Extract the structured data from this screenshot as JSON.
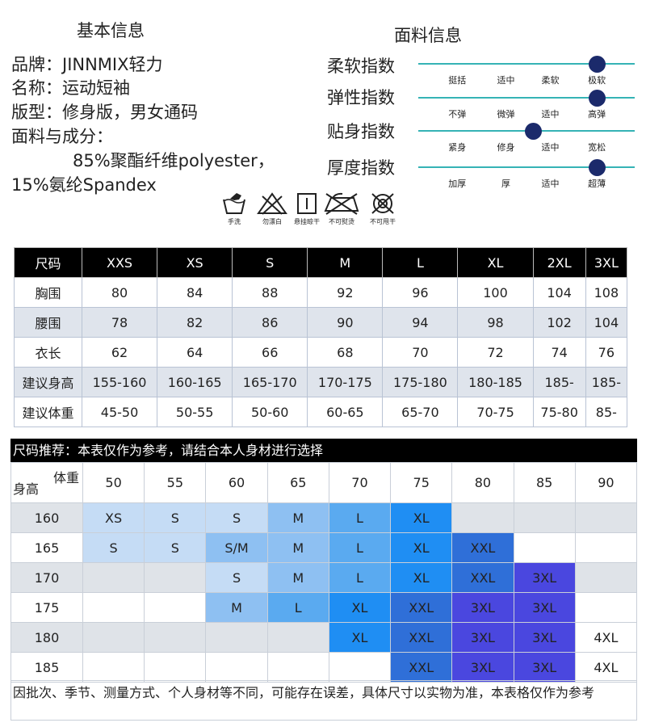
{
  "basic": {
    "heading": "基本信息",
    "brand": "品牌：JINNMIX轻力",
    "name": "名称：运动短袖",
    "fit": "版型：修身版，男女通码",
    "fabric": "面料与成分：",
    "composition_1": "85%聚酯纤维polyester，",
    "composition_2": "15%氨纶Spandex"
  },
  "fabric": {
    "heading": "面料信息",
    "indices": [
      {
        "label": "柔软指数",
        "ticks": [
          "挺括",
          "适中",
          "柔软",
          "极软"
        ],
        "level": 4
      },
      {
        "label": "弹性指数",
        "ticks": [
          "不弹",
          "微弹",
          "适中",
          "高弹"
        ],
        "level": 4
      },
      {
        "label": "贴身指数",
        "ticks": [
          "紧身",
          "修身",
          "适中",
          "宽松"
        ],
        "level": 2.6
      },
      {
        "label": "厚度指数",
        "ticks": [
          "加厚",
          "厚",
          "适中",
          "超薄"
        ],
        "level": 4
      }
    ]
  },
  "care": {
    "hand_wash": "手洗",
    "no_bleach": "勿漂白",
    "hang_dry": "悬挂晾干",
    "no_iron": "不可熨烫",
    "no_tumble": "不可甩干"
  },
  "size_table": {
    "header": [
      "尺码",
      "XXS",
      "XS",
      "S",
      "M",
      "L",
      "XL",
      "2XL",
      "3XL"
    ],
    "rows": [
      [
        "胸围",
        "80",
        "84",
        "88",
        "92",
        "96",
        "100",
        "104",
        "108"
      ],
      [
        "腰围",
        "78",
        "82",
        "86",
        "90",
        "94",
        "98",
        "102",
        "104"
      ],
      [
        "衣长",
        "62",
        "64",
        "66",
        "68",
        "70",
        "72",
        "74",
        "76"
      ],
      [
        "建议身高",
        "155-160",
        "160-165",
        "165-170",
        "170-175",
        "175-180",
        "180-185",
        "185-",
        "185-"
      ],
      [
        "建议体重",
        "45-50",
        "50-55",
        "50-60",
        "60-65",
        "65-70",
        "70-75",
        "75-80",
        "85-"
      ]
    ]
  },
  "recommend": {
    "title": "尺码推荐：本表仅作为参考，请结合本人身材进行选择",
    "weight_label": "体重",
    "height_label": "身高",
    "weights": [
      "50",
      "55",
      "60",
      "65",
      "70",
      "75",
      "80",
      "85",
      "90"
    ],
    "rows": [
      {
        "height": "160",
        "cells": [
          "XS",
          "S",
          "S",
          "M",
          "L",
          "XL",
          "",
          "",
          ""
        ]
      },
      {
        "height": "165",
        "cells": [
          "S",
          "S",
          "S/M",
          "M",
          "L",
          "XL",
          "XXL",
          "",
          ""
        ]
      },
      {
        "height": "170",
        "cells": [
          "",
          "",
          "S",
          "M",
          "L",
          "XL",
          "XXL",
          "3XL",
          ""
        ]
      },
      {
        "height": "175",
        "cells": [
          "",
          "",
          "M",
          "L",
          "XL",
          "XXL",
          "3XL",
          "3XL",
          ""
        ]
      },
      {
        "height": "180",
        "cells": [
          "",
          "",
          "",
          "",
          "XL",
          "XXL",
          "3XL",
          "3XL",
          "4XL"
        ]
      },
      {
        "height": "185",
        "cells": [
          "",
          "",
          "",
          "",
          "",
          "XXL",
          "3XL",
          "3XL",
          "4XL"
        ]
      }
    ],
    "size_colors": {
      "XS": "#c5dcf5",
      "S": "#c5dcf5",
      "S/M": "#8ec0f2",
      "M": "#8ec0f2",
      "L": "#5aaaf0",
      "XL": "#1f8ef3",
      "XXL": "#2f6fd8",
      "3XL": "#4a47df",
      "4XL": "#ffffff"
    },
    "note": "因批次、季节、测量方式、个人身材等不同，可能存在误差，具体尺寸以实物为准，本表格仅作为参考"
  }
}
